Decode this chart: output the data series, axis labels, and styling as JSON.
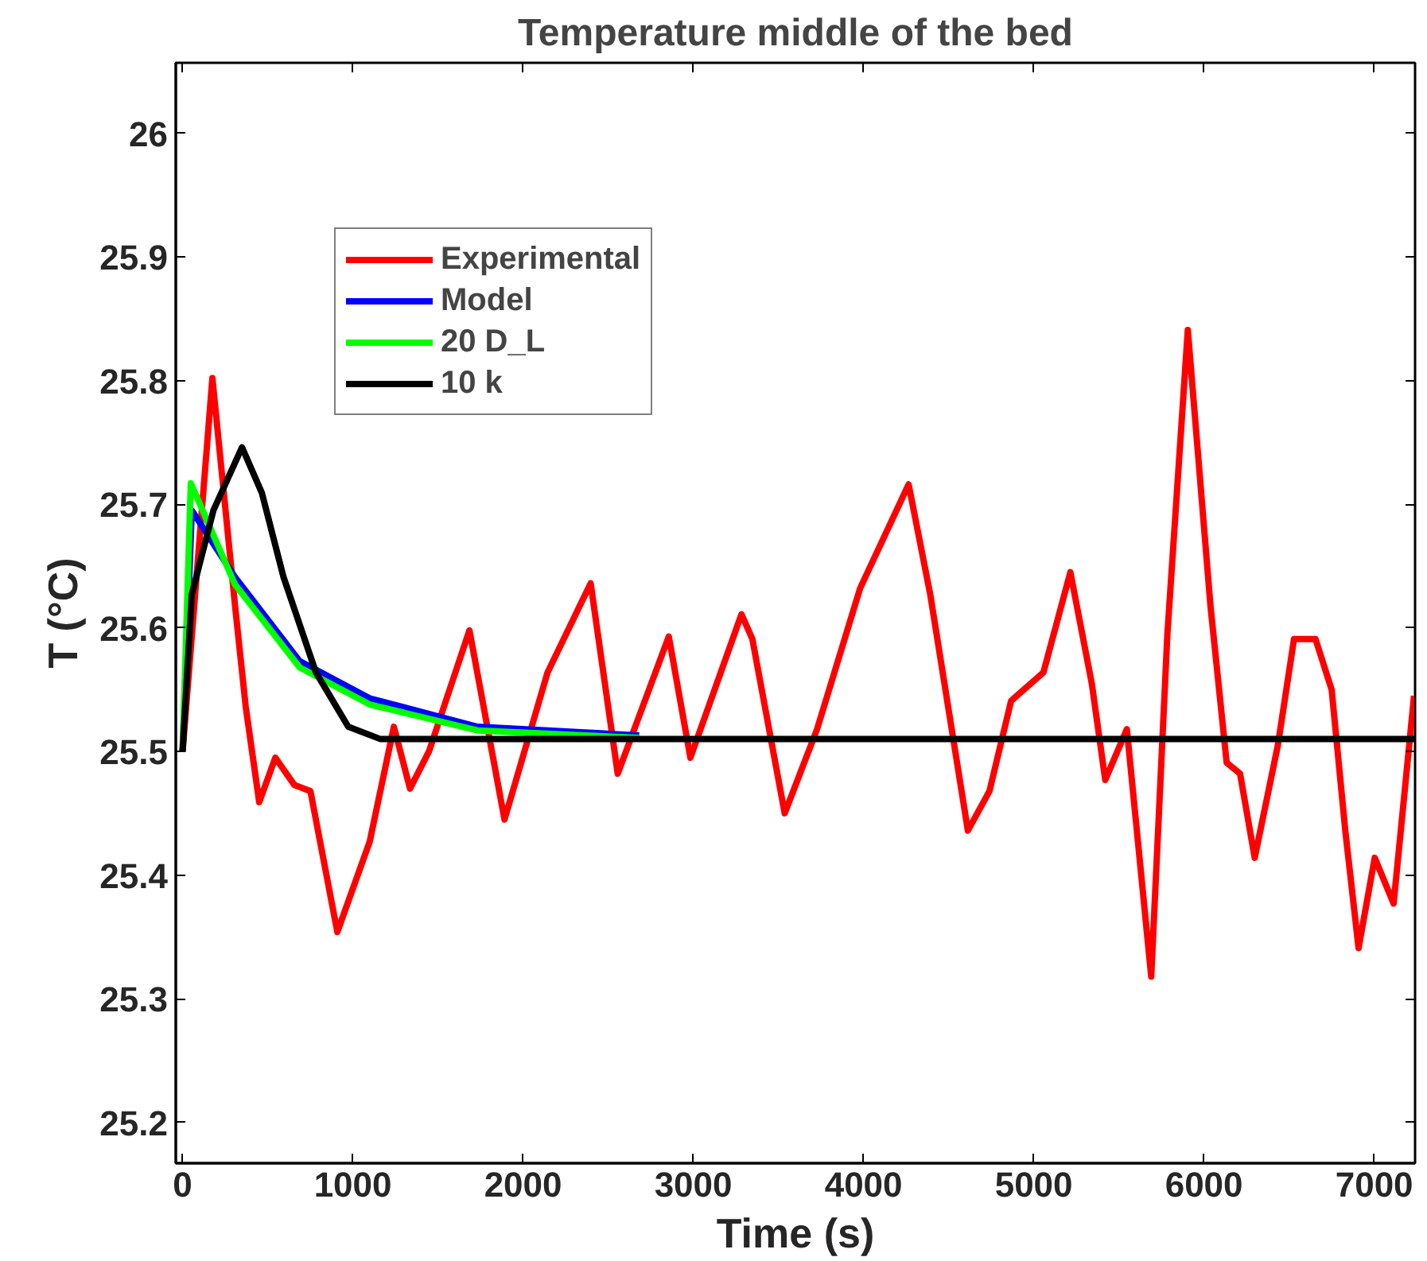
{
  "chart_data": {
    "type": "line",
    "title": "Temperature middle of the bed",
    "xlabel": "Time (s)",
    "ylabel": "T (°C)",
    "xlim": [
      -40,
      7240
    ],
    "ylim": [
      25.167,
      26.057
    ],
    "xticks": [
      0,
      1000,
      2000,
      3000,
      4000,
      5000,
      6000,
      7000
    ],
    "yticks": [
      25.2,
      25.3,
      25.4,
      25.5,
      25.6,
      25.7,
      25.8,
      25.9,
      26
    ],
    "grid": false,
    "legend": "top left",
    "line_style": "solid",
    "marker": "none",
    "series": [
      {
        "name": "Experimental",
        "color": "#ff0000",
        "x": [
          0,
          175,
          308,
          371,
          450,
          545,
          656,
          751,
          909,
          1099,
          1241,
          1336,
          1447,
          1685,
          1891,
          2144,
          2397,
          2556,
          2856,
          2983,
          3283,
          3347,
          3537,
          3727,
          3980,
          4265,
          4392,
          4613,
          4740,
          4867,
          5057,
          5215,
          5341,
          5420,
          5547,
          5690,
          5785,
          5905,
          6038,
          6133,
          6212,
          6298,
          6434,
          6529,
          6655,
          6750,
          6830,
          6908,
          7003,
          7114,
          7234
        ],
        "values": [
          25.5,
          25.802,
          25.618,
          25.536,
          25.459,
          25.495,
          25.473,
          25.468,
          25.354,
          25.427,
          25.52,
          25.47,
          25.5,
          25.598,
          25.445,
          25.564,
          25.636,
          25.482,
          25.593,
          25.495,
          25.611,
          25.591,
          25.45,
          25.518,
          25.632,
          25.716,
          25.627,
          25.436,
          25.468,
          25.541,
          25.564,
          25.645,
          25.555,
          25.477,
          25.518,
          25.318,
          25.595,
          25.841,
          25.618,
          25.491,
          25.482,
          25.414,
          25.505,
          25.591,
          25.591,
          25.55,
          25.436,
          25.341,
          25.414,
          25.377,
          25.545
        ]
      },
      {
        "name": "Model",
        "color": "#0000ff",
        "x": [
          0,
          54,
          308,
          688,
          1099,
          1732,
          2682
        ],
        "values": [
          25.5,
          25.695,
          25.641,
          25.573,
          25.543,
          25.52,
          25.513
        ]
      },
      {
        "name": "20 D_L",
        "color": "#00ff00",
        "x": [
          0,
          48,
          308,
          688,
          1099,
          1732,
          2682
        ],
        "values": [
          25.5,
          25.717,
          25.635,
          25.568,
          25.538,
          25.517,
          25.511
        ]
      },
      {
        "name": "10 k",
        "color": "#000000",
        "x": [
          0,
          54,
          181,
          349,
          466,
          593,
          783,
          973,
          1163,
          7240
        ],
        "values": [
          25.5,
          25.627,
          25.695,
          25.746,
          25.709,
          25.641,
          25.564,
          25.52,
          25.51,
          25.51
        ]
      }
    ]
  }
}
